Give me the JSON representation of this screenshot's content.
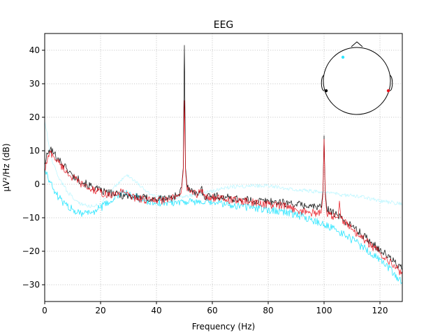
{
  "chart_data": {
    "type": "line",
    "title": "EEG",
    "xlabel": "Frequency (Hz)",
    "ylabel": "µV²/Hz (dB)",
    "xlim": [
      0,
      128
    ],
    "ylim": [
      -35,
      45
    ],
    "xticks": [
      0,
      20,
      40,
      60,
      80,
      100,
      120
    ],
    "yticks": [
      -30,
      -20,
      -10,
      0,
      10,
      20,
      30,
      40
    ],
    "grid": true,
    "colors": {
      "black": "#000000",
      "red": "#e8141e",
      "cyan_strong": "#2ee6ff",
      "cyan_faint": "#b8f6ff"
    },
    "inset": {
      "type": "sensor-topomap",
      "placement": "top-right",
      "sensors": [
        {
          "color": "#2ee6ff",
          "position": "front-left"
        },
        {
          "color": "#000000",
          "position": "left"
        },
        {
          "color": "#e8141e",
          "position": "right"
        }
      ]
    },
    "series": [
      {
        "color": "#000000",
        "x": [
          0,
          1,
          2,
          3,
          5,
          8,
          10,
          15,
          20,
          25,
          30,
          35,
          40,
          45,
          48,
          49,
          49.6,
          50,
          50.4,
          51,
          53,
          55,
          56,
          57,
          60,
          65,
          70,
          75,
          80,
          85,
          90,
          95,
          99,
          99.6,
          100,
          100.4,
          101,
          103,
          105,
          110,
          115,
          120,
          125,
          128
        ],
        "y": [
          6,
          9,
          10.5,
          9.5,
          7.5,
          4.5,
          2.5,
          0,
          -2,
          -3,
          -3.5,
          -4,
          -4.5,
          -4,
          -3,
          -1,
          5,
          41.5,
          5,
          -1,
          -2.5,
          -3,
          -1,
          -3.5,
          -3.5,
          -4,
          -4.5,
          -5,
          -5,
          -5.5,
          -6,
          -6.5,
          -7,
          -2,
          14.5,
          -2,
          -7.5,
          -8,
          -9.5,
          -12.5,
          -16,
          -19.5,
          -23,
          -25.5
        ]
      },
      {
        "color": "#e8141e",
        "x": [
          0,
          1,
          2,
          3,
          5,
          8,
          10,
          15,
          20,
          25,
          28,
          30,
          35,
          40,
          45,
          48,
          49,
          49.6,
          50,
          50.4,
          51,
          55,
          56,
          57,
          60,
          65,
          70,
          75,
          80,
          85,
          90,
          95,
          99,
          99.6,
          100,
          100.4,
          101,
          103,
          105,
          105.5,
          106,
          107,
          110,
          115,
          120,
          125,
          128
        ],
        "y": [
          4,
          7.5,
          9.5,
          8.5,
          6.5,
          3.5,
          2,
          -1,
          -2.5,
          -3.5,
          -1.5,
          -3.5,
          -4.5,
          -5,
          -4.5,
          -3.5,
          -1.5,
          4,
          25,
          4,
          -2,
          -3,
          -1.5,
          -3.5,
          -4,
          -4.5,
          -5,
          -5.5,
          -6,
          -6.5,
          -7.5,
          -8.5,
          -8.5,
          -3,
          13.5,
          -3,
          -9,
          -9.5,
          -10,
          -5,
          -10,
          -11,
          -13.5,
          -17,
          -20.5,
          -24,
          -27
        ]
      },
      {
        "color": "#2ee6ff",
        "x": [
          0,
          1,
          2,
          3,
          5,
          8,
          10,
          13,
          15,
          18,
          20,
          23,
          26,
          28,
          30,
          33,
          36,
          40,
          45,
          50,
          55,
          60,
          65,
          70,
          75,
          80,
          85,
          90,
          95,
          100,
          105,
          110,
          115,
          120,
          125,
          128
        ],
        "y": [
          4.5,
          3,
          0.5,
          -1.5,
          -4,
          -6.5,
          -7.5,
          -8.5,
          -8.5,
          -8,
          -7,
          -5.5,
          -3.5,
          -2.5,
          -3,
          -4,
          -5,
          -5.5,
          -5.5,
          -5,
          -5.5,
          -5.5,
          -6,
          -6.5,
          -7,
          -7.5,
          -8,
          -9,
          -10.5,
          -12,
          -14,
          -16.5,
          -19.5,
          -22.5,
          -26.5,
          -29.5
        ]
      },
      {
        "color": "#b8f6ff",
        "x": [
          0,
          1,
          2,
          3,
          5,
          8,
          10,
          13,
          16,
          20,
          24,
          27,
          29,
          31,
          34,
          38,
          42,
          46,
          50,
          55,
          60,
          65,
          70,
          75,
          80,
          85,
          90,
          95,
          100,
          105,
          110,
          115,
          120,
          125,
          128
        ],
        "y": [
          19,
          14,
          9,
          6,
          2,
          -2,
          -4,
          -6,
          -6.5,
          -6,
          -2,
          1,
          2.5,
          2,
          -0.5,
          -3,
          -4,
          -4.5,
          -3.5,
          -3,
          -2,
          -1,
          -0.5,
          -0.5,
          -0.5,
          -1,
          -1.5,
          -2,
          -2.5,
          -3,
          -3.5,
          -4,
          -5,
          -5.5,
          -6
        ]
      }
    ]
  }
}
